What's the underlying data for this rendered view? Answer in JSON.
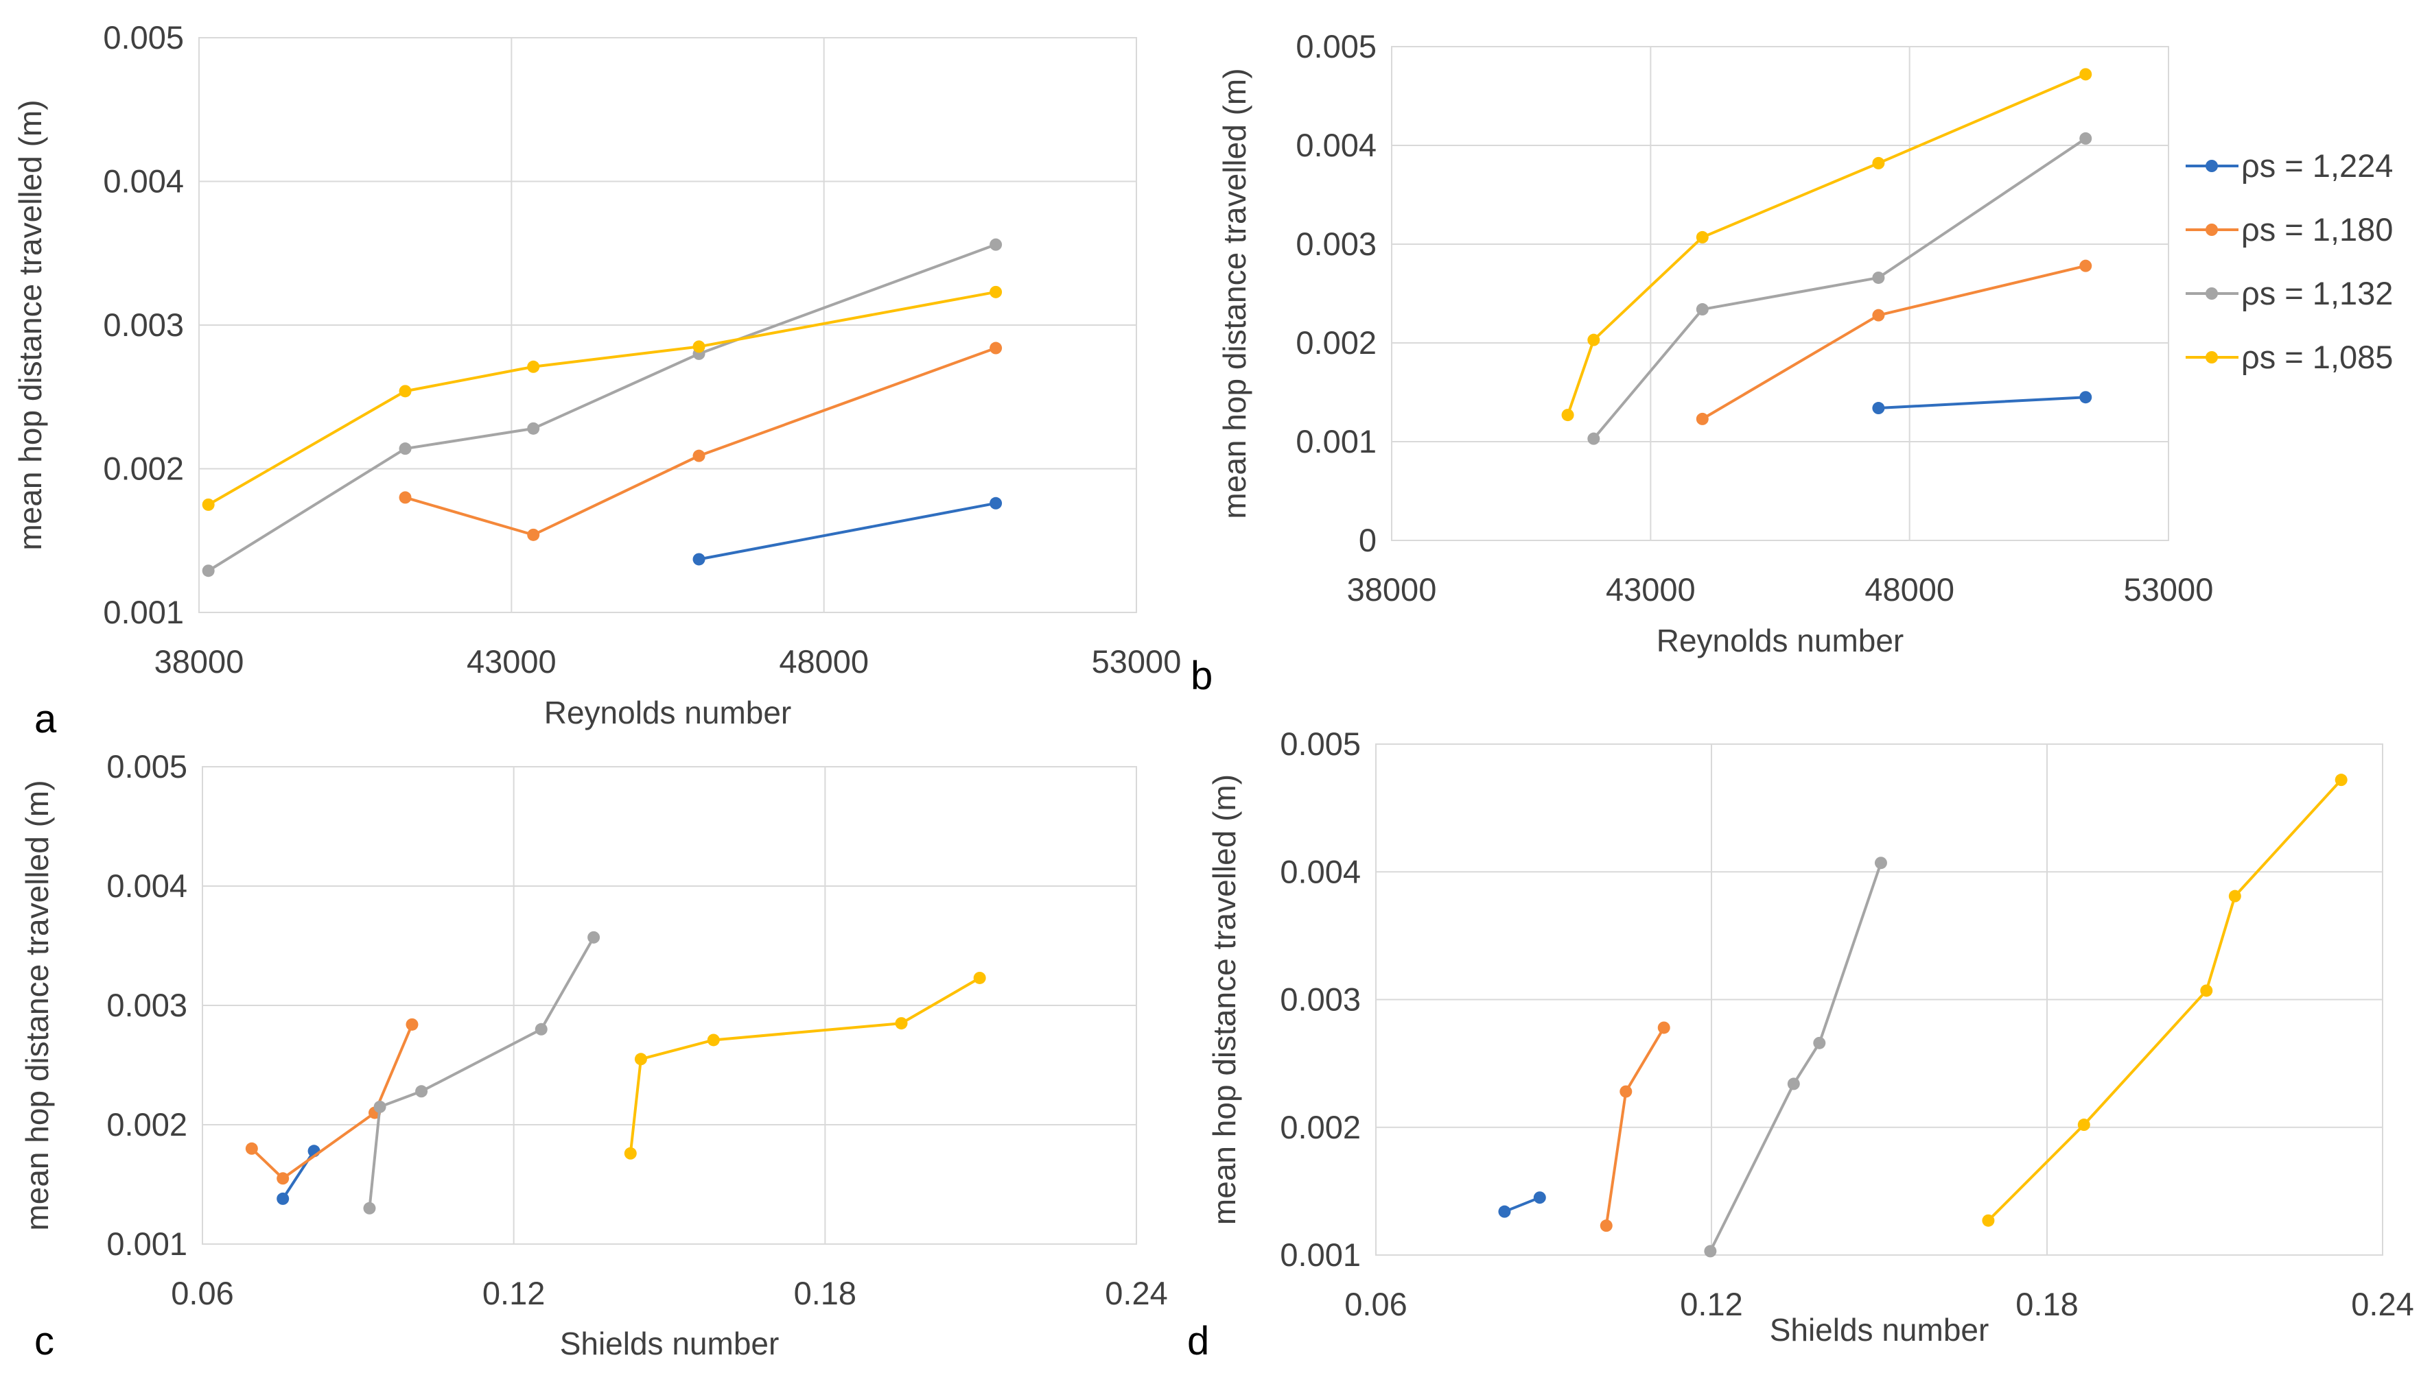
{
  "colors": {
    "rho_1224": "#2f6ebf",
    "rho_1180": "#f4883a",
    "rho_1132": "#a5a5a5",
    "rho_1085": "#ffc000"
  },
  "legend": [
    {
      "key": "rho_1224",
      "label": "ρs = 1,224"
    },
    {
      "key": "rho_1180",
      "label": "ρs = 1,180"
    },
    {
      "key": "rho_1132",
      "label": "ρs = 1,132"
    },
    {
      "key": "rho_1085",
      "label": "ρs = 1,085"
    }
  ],
  "chart_data": [
    {
      "id": "a",
      "panel_label": "a",
      "type": "line",
      "xlabel": "Reynolds number",
      "ylabel": "mean hop distance travelled (m)",
      "xlim": [
        38000,
        53000
      ],
      "ylim": [
        0.001,
        0.005
      ],
      "xticks": [
        38000,
        43000,
        48000,
        53000
      ],
      "yticks": [
        0.001,
        0.002,
        0.003,
        0.004,
        0.005
      ],
      "xtick_labels": [
        "38000",
        "43000",
        "48000",
        "53000"
      ],
      "ytick_labels": [
        "0.001",
        "0.002",
        "0.003",
        "0.004",
        "0.005"
      ],
      "series": [
        {
          "name": "ρs = 1,224",
          "color_key": "rho_1224",
          "x": [
            46000,
            50750
          ],
          "y": [
            0.00137,
            0.00176
          ]
        },
        {
          "name": "ρs = 1,180",
          "color_key": "rho_1180",
          "x": [
            41300,
            43350,
            46000,
            50750
          ],
          "y": [
            0.0018,
            0.00154,
            0.00209,
            0.00284
          ]
        },
        {
          "name": "ρs = 1,132",
          "color_key": "rho_1132",
          "x": [
            38150,
            41300,
            43350,
            46000,
            50750
          ],
          "y": [
            0.00129,
            0.00214,
            0.00228,
            0.0028,
            0.00356
          ]
        },
        {
          "name": "ρs = 1,085",
          "color_key": "rho_1085",
          "x": [
            38150,
            41300,
            43350,
            46000,
            50750
          ],
          "y": [
            0.00175,
            0.00254,
            0.00271,
            0.00285,
            0.00323
          ]
        }
      ]
    },
    {
      "id": "b",
      "panel_label": "b",
      "type": "line",
      "xlabel": "Reynolds number",
      "ylabel": "mean hop distance travelled (m)",
      "xlim": [
        38000,
        53000
      ],
      "ylim": [
        0,
        0.005
      ],
      "xticks": [
        38000,
        43000,
        48000,
        53000
      ],
      "yticks": [
        0,
        0.001,
        0.002,
        0.003,
        0.004,
        0.005
      ],
      "xtick_labels": [
        "38000",
        "43000",
        "48000",
        "53000"
      ],
      "ytick_labels": [
        "0",
        "0.001",
        "0.002",
        "0.003",
        "0.004",
        "0.005"
      ],
      "series": [
        {
          "name": "ρs = 1,224",
          "color_key": "rho_1224",
          "x": [
            47400,
            51400
          ],
          "y": [
            0.00134,
            0.00145
          ]
        },
        {
          "name": "ρs = 1,180",
          "color_key": "rho_1180",
          "x": [
            44000,
            47400,
            51400
          ],
          "y": [
            0.00123,
            0.00228,
            0.00278
          ]
        },
        {
          "name": "ρs = 1,132",
          "color_key": "rho_1132",
          "x": [
            41900,
            44000,
            47400,
            51400
          ],
          "y": [
            0.00103,
            0.00234,
            0.00266,
            0.00407
          ]
        },
        {
          "name": "ρs = 1,085",
          "color_key": "rho_1085",
          "x": [
            41400,
            41900,
            44000,
            47400,
            51400
          ],
          "y": [
            0.00127,
            0.00203,
            0.00307,
            0.00382,
            0.00472
          ]
        }
      ]
    },
    {
      "id": "c",
      "panel_label": "c",
      "type": "line",
      "xlabel": "Shields number",
      "ylabel": "mean hop distance travelled (m)",
      "xlim": [
        0.06,
        0.24
      ],
      "ylim": [
        0.001,
        0.005
      ],
      "xticks": [
        0.06,
        0.12,
        0.18,
        0.24
      ],
      "yticks": [
        0.001,
        0.002,
        0.003,
        0.004,
        0.005
      ],
      "xtick_labels": [
        "0.06",
        "0.12",
        "0.18",
        "0.24"
      ],
      "ytick_labels": [
        "0.001",
        "0.002",
        "0.003",
        "0.004",
        "0.005"
      ],
      "series": [
        {
          "name": "ρs = 1,224",
          "color_key": "rho_1224",
          "x": [
            0.0755,
            0.0815
          ],
          "y": [
            0.00138,
            0.00178
          ]
        },
        {
          "name": "ρs = 1,180",
          "color_key": "rho_1180",
          "x": [
            0.0695,
            0.0755,
            0.0932,
            0.1004
          ],
          "y": [
            0.0018,
            0.00155,
            0.0021,
            0.00284
          ]
        },
        {
          "name": "ρs = 1,132",
          "color_key": "rho_1132",
          "x": [
            0.0922,
            0.0942,
            0.1022,
            0.1253,
            0.1354
          ],
          "y": [
            0.0013,
            0.00215,
            0.00228,
            0.0028,
            0.00357
          ]
        },
        {
          "name": "ρs = 1,085",
          "color_key": "rho_1085",
          "x": [
            0.1425,
            0.1445,
            0.1585,
            0.1947,
            0.2098
          ],
          "y": [
            0.00176,
            0.00255,
            0.00271,
            0.00285,
            0.00323
          ]
        }
      ]
    },
    {
      "id": "d",
      "panel_label": "d",
      "type": "line",
      "xlabel": "Shields number",
      "ylabel": "mean hop distance travelled (m)",
      "xlim": [
        0.06,
        0.24
      ],
      "ylim": [
        0.001,
        0.005
      ],
      "xticks": [
        0.06,
        0.12,
        0.18,
        0.24
      ],
      "yticks": [
        0.001,
        0.002,
        0.003,
        0.004,
        0.005
      ],
      "xtick_labels": [
        "0.06",
        "0.12",
        "0.18",
        "0.24"
      ],
      "ytick_labels": [
        "0.001",
        "0.002",
        "0.003",
        "0.004",
        "0.005"
      ],
      "series": [
        {
          "name": "ρs = 1,224",
          "color_key": "rho_1224",
          "x": [
            0.083,
            0.0893
          ],
          "y": [
            0.00134,
            0.00145
          ]
        },
        {
          "name": "ρs = 1,180",
          "color_key": "rho_1180",
          "x": [
            0.1012,
            0.1047,
            0.1115
          ],
          "y": [
            0.00123,
            0.00228,
            0.00278
          ]
        },
        {
          "name": "ρs = 1,132",
          "color_key": "rho_1132",
          "x": [
            0.1198,
            0.1347,
            0.1393,
            0.1503
          ],
          "y": [
            0.00103,
            0.00234,
            0.00266,
            0.00407
          ]
        },
        {
          "name": "ρs = 1,085",
          "color_key": "rho_1085",
          "x": [
            0.1695,
            0.1866,
            0.2085,
            0.2136,
            0.2326
          ],
          "y": [
            0.00127,
            0.00202,
            0.00307,
            0.00381,
            0.00472
          ]
        }
      ]
    }
  ]
}
